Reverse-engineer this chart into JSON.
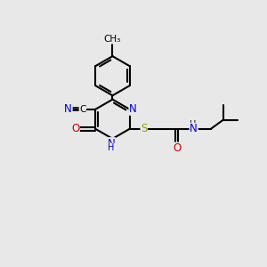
{
  "bg_color": "#e8e8e8",
  "bond_color": "#000000",
  "bond_width": 1.5,
  "font_size": 8.5,
  "fig_width": 3.0,
  "fig_height": 3.0,
  "dpi": 100,
  "colors": {
    "N": "#0000cc",
    "O": "#cc0000",
    "S": "#999900",
    "C": "#000000",
    "H": "#444444"
  }
}
